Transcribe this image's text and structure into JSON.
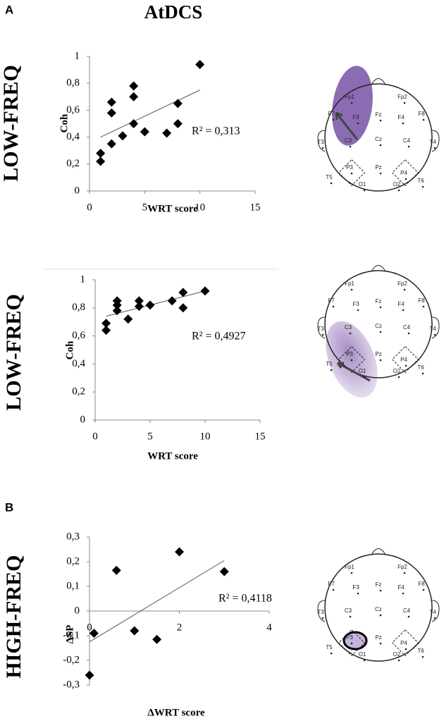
{
  "figure": {
    "title": "AtDCS",
    "panel_labels": [
      "A",
      "B"
    ]
  },
  "electrodes": [
    "Fp1",
    "Fp2",
    "F7",
    "F3",
    "Fz",
    "F4",
    "F8",
    "T3",
    "C3",
    "Cz",
    "C4",
    "T4",
    "T5",
    "P3",
    "Pz",
    "P4",
    "T6",
    "O1",
    "O2"
  ],
  "chart_data": [
    {
      "type": "scatter",
      "side_label": "LOW-FREQ",
      "x_label": "WRT score",
      "y_label": "Coh",
      "annotation": "R² = 0,313",
      "color": "#000000",
      "x": [
        1,
        1,
        2,
        2,
        2,
        3,
        4,
        4,
        4,
        5,
        7,
        8,
        8,
        10
      ],
      "y": [
        0.22,
        0.28,
        0.35,
        0.58,
        0.66,
        0.41,
        0.78,
        0.7,
        0.5,
        0.44,
        0.43,
        0.65,
        0.5,
        0.94
      ],
      "trendline": {
        "x": [
          1,
          10
        ],
        "y": [
          0.4,
          0.75
        ]
      },
      "xlim": [
        0,
        15
      ],
      "xticks": [
        0,
        5,
        10,
        15
      ],
      "ylim": [
        0,
        1
      ],
      "yticks": [
        0,
        {
          "value": 0.2,
          "label": "0,2"
        },
        {
          "value": 0.4,
          "label": "0,4"
        },
        {
          "value": 0.6,
          "label": "0,6"
        },
        {
          "value": 0.8,
          "label": "0,8"
        },
        1
      ]
    },
    {
      "type": "scatter",
      "side_label": "LOW-FREQ",
      "x_label": "WRT score",
      "y_label": "Coh",
      "annotation": "R² = 0,4927",
      "color": "#000000",
      "x": [
        1,
        1,
        2,
        2,
        2,
        3,
        4,
        4,
        5,
        7,
        8,
        8,
        10
      ],
      "y": [
        0.64,
        0.69,
        0.78,
        0.82,
        0.85,
        0.72,
        0.81,
        0.85,
        0.82,
        0.85,
        0.8,
        0.91,
        0.92
      ],
      "trendline": {
        "x": [
          1,
          10
        ],
        "y": [
          0.74,
          0.92
        ]
      },
      "xlim": [
        0,
        15
      ],
      "xticks": [
        0,
        5,
        10,
        15
      ],
      "ylim": [
        0,
        1
      ],
      "yticks": [
        0,
        {
          "value": 0.2,
          "label": "0,2"
        },
        {
          "value": 0.4,
          "label": "0,4"
        },
        {
          "value": 0.6,
          "label": "0,6"
        },
        {
          "value": 0.8,
          "label": "0,8"
        },
        1
      ]
    },
    {
      "type": "scatter",
      "side_label": "HIGH-FREQ",
      "x_label": "ΔWRT score",
      "y_label": "ΔSP",
      "annotation": "R² = 0,4118",
      "color": "#000000",
      "x": [
        0,
        0.1,
        0.6,
        1,
        1.5,
        2,
        3
      ],
      "y": [
        -0.26,
        -0.09,
        0.165,
        -0.08,
        -0.115,
        0.24,
        0.16
      ],
      "trendline": {
        "x": [
          0,
          3
        ],
        "y": [
          -0.125,
          0.205
        ]
      },
      "xlim": [
        0,
        4
      ],
      "xticks": [
        0,
        2,
        4
      ],
      "ylim": [
        -0.3,
        0.3
      ],
      "yticks": [
        {
          "value": -0.3,
          "label": "-0,3"
        },
        {
          "value": -0.2,
          "label": "-0,2"
        },
        {
          "value": -0.1,
          "label": "-0,1"
        },
        0,
        {
          "value": 0.1,
          "label": "0,1"
        },
        {
          "value": 0.2,
          "label": "0,2"
        },
        {
          "value": 0.3,
          "label": "0,3"
        }
      ]
    }
  ]
}
